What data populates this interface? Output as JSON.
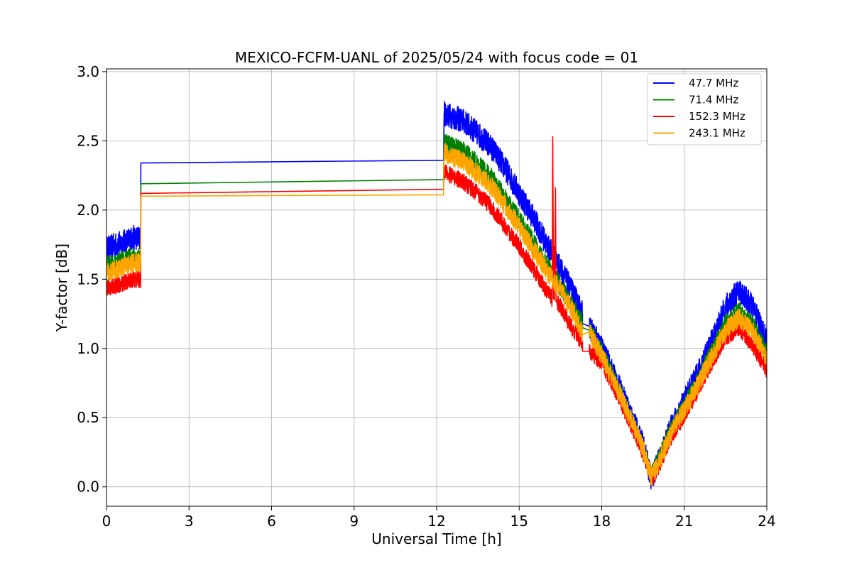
{
  "chart_data": {
    "type": "line",
    "title": "MEXICO-FCFM-UANL of 2025/05/24 with focus code = 01",
    "xlabel": "Universal Time [h]",
    "ylabel": "Y-factor [dB]",
    "xlim": [
      0,
      24
    ],
    "ylim": [
      -0.14,
      3.02
    ],
    "xticks": [
      0,
      3,
      6,
      9,
      12,
      15,
      18,
      21,
      24
    ],
    "yticks": [
      0.0,
      0.5,
      1.0,
      1.5,
      2.0,
      2.5,
      3.0
    ],
    "xtick_labels": [
      "0",
      "3",
      "6",
      "9",
      "12",
      "15",
      "18",
      "21",
      "24"
    ],
    "ytick_labels": [
      "0.0",
      "0.5",
      "1.0",
      "1.5",
      "2.0",
      "2.5",
      "3.0"
    ],
    "grid": true,
    "legend_position": "top-right",
    "series": [
      {
        "name": " 47.7 MHz",
        "color": "#0000ff",
        "noise": 0.09,
        "x": [
          0,
          0.5,
          1.0,
          1.24,
          1.25,
          12.25,
          12.27,
          12.5,
          13,
          13.5,
          14,
          14.5,
          15,
          15.5,
          16,
          16.5,
          17,
          17.3,
          17.3,
          17.55,
          17.55,
          18,
          18.5,
          19,
          19.5,
          19.8,
          20.0,
          20.5,
          21,
          21.5,
          22,
          22.5,
          23.0,
          23.5,
          24
        ],
        "y": [
          1.72,
          1.76,
          1.8,
          1.8,
          2.34,
          2.36,
          2.7,
          2.68,
          2.64,
          2.55,
          2.45,
          2.3,
          2.12,
          1.95,
          1.75,
          1.58,
          1.38,
          1.25,
          1.18,
          1.16,
          1.16,
          1.0,
          0.78,
          0.55,
          0.3,
          0.06,
          0.15,
          0.42,
          0.62,
          0.82,
          1.05,
          1.3,
          1.42,
          1.3,
          1.05
        ]
      },
      {
        "name": " 71.4 MHz",
        "color": "#008000",
        "noise": 0.07,
        "x": [
          0,
          0.5,
          1.0,
          1.24,
          1.25,
          12.25,
          12.27,
          12.5,
          13,
          13.5,
          14,
          14.5,
          15,
          15.5,
          16,
          16.5,
          17,
          17.3,
          17.3,
          17.55,
          17.55,
          18,
          18.5,
          19,
          19.5,
          19.8,
          20.0,
          20.5,
          21,
          21.5,
          22,
          22.5,
          23.0,
          23.5,
          24
        ],
        "y": [
          1.6,
          1.63,
          1.66,
          1.66,
          2.19,
          2.22,
          2.5,
          2.47,
          2.42,
          2.33,
          2.23,
          2.08,
          1.93,
          1.77,
          1.6,
          1.45,
          1.28,
          1.18,
          1.15,
          1.13,
          1.13,
          0.97,
          0.75,
          0.52,
          0.28,
          0.07,
          0.16,
          0.4,
          0.58,
          0.77,
          0.97,
          1.18,
          1.27,
          1.17,
          0.96
        ]
      },
      {
        "name": " 152.3 MHz",
        "color": "#ff0000",
        "noise": 0.06,
        "x": [
          0,
          0.5,
          1.0,
          1.24,
          1.25,
          12.25,
          12.27,
          12.5,
          13,
          13.5,
          14,
          14.5,
          15,
          15.5,
          16,
          16.2,
          16.22,
          16.25,
          16.28,
          16.32,
          16.34,
          16.37,
          16.5,
          17,
          17.3,
          17.3,
          17.55,
          17.55,
          18,
          18.5,
          19,
          19.5,
          19.8,
          20.0,
          20.5,
          21,
          21.5,
          22,
          22.5,
          23.0,
          23.5,
          24
        ],
        "y": [
          1.44,
          1.46,
          1.5,
          1.5,
          2.12,
          2.15,
          2.28,
          2.25,
          2.2,
          2.12,
          2.02,
          1.88,
          1.74,
          1.58,
          1.42,
          1.36,
          2.53,
          1.36,
          1.35,
          2.16,
          1.34,
          1.33,
          1.3,
          1.12,
          1.05,
          0.98,
          0.98,
          0.98,
          0.9,
          0.7,
          0.48,
          0.25,
          0.06,
          0.12,
          0.35,
          0.52,
          0.7,
          0.9,
          1.08,
          1.15,
          1.02,
          0.84
        ]
      },
      {
        "name": " 243.1 MHz",
        "color": "#ffa500",
        "noise": 0.07,
        "x": [
          0,
          0.5,
          1.0,
          1.24,
          1.25,
          12.25,
          12.27,
          12.5,
          13,
          13.5,
          14,
          14.5,
          15,
          15.5,
          16,
          16.5,
          17,
          17.3,
          17.3,
          17.55,
          17.55,
          18,
          18.5,
          19,
          19.5,
          19.8,
          20.0,
          20.5,
          21,
          21.5,
          22,
          22.5,
          23.0,
          23.5,
          24
        ],
        "y": [
          1.55,
          1.58,
          1.62,
          1.62,
          2.1,
          2.11,
          2.42,
          2.39,
          2.35,
          2.26,
          2.17,
          2.03,
          1.88,
          1.72,
          1.56,
          1.42,
          1.25,
          1.1,
          1.1,
          1.12,
          1.12,
          0.95,
          0.74,
          0.52,
          0.28,
          0.07,
          0.15,
          0.38,
          0.56,
          0.74,
          0.94,
          1.13,
          1.22,
          1.12,
          0.93
        ]
      }
    ]
  }
}
